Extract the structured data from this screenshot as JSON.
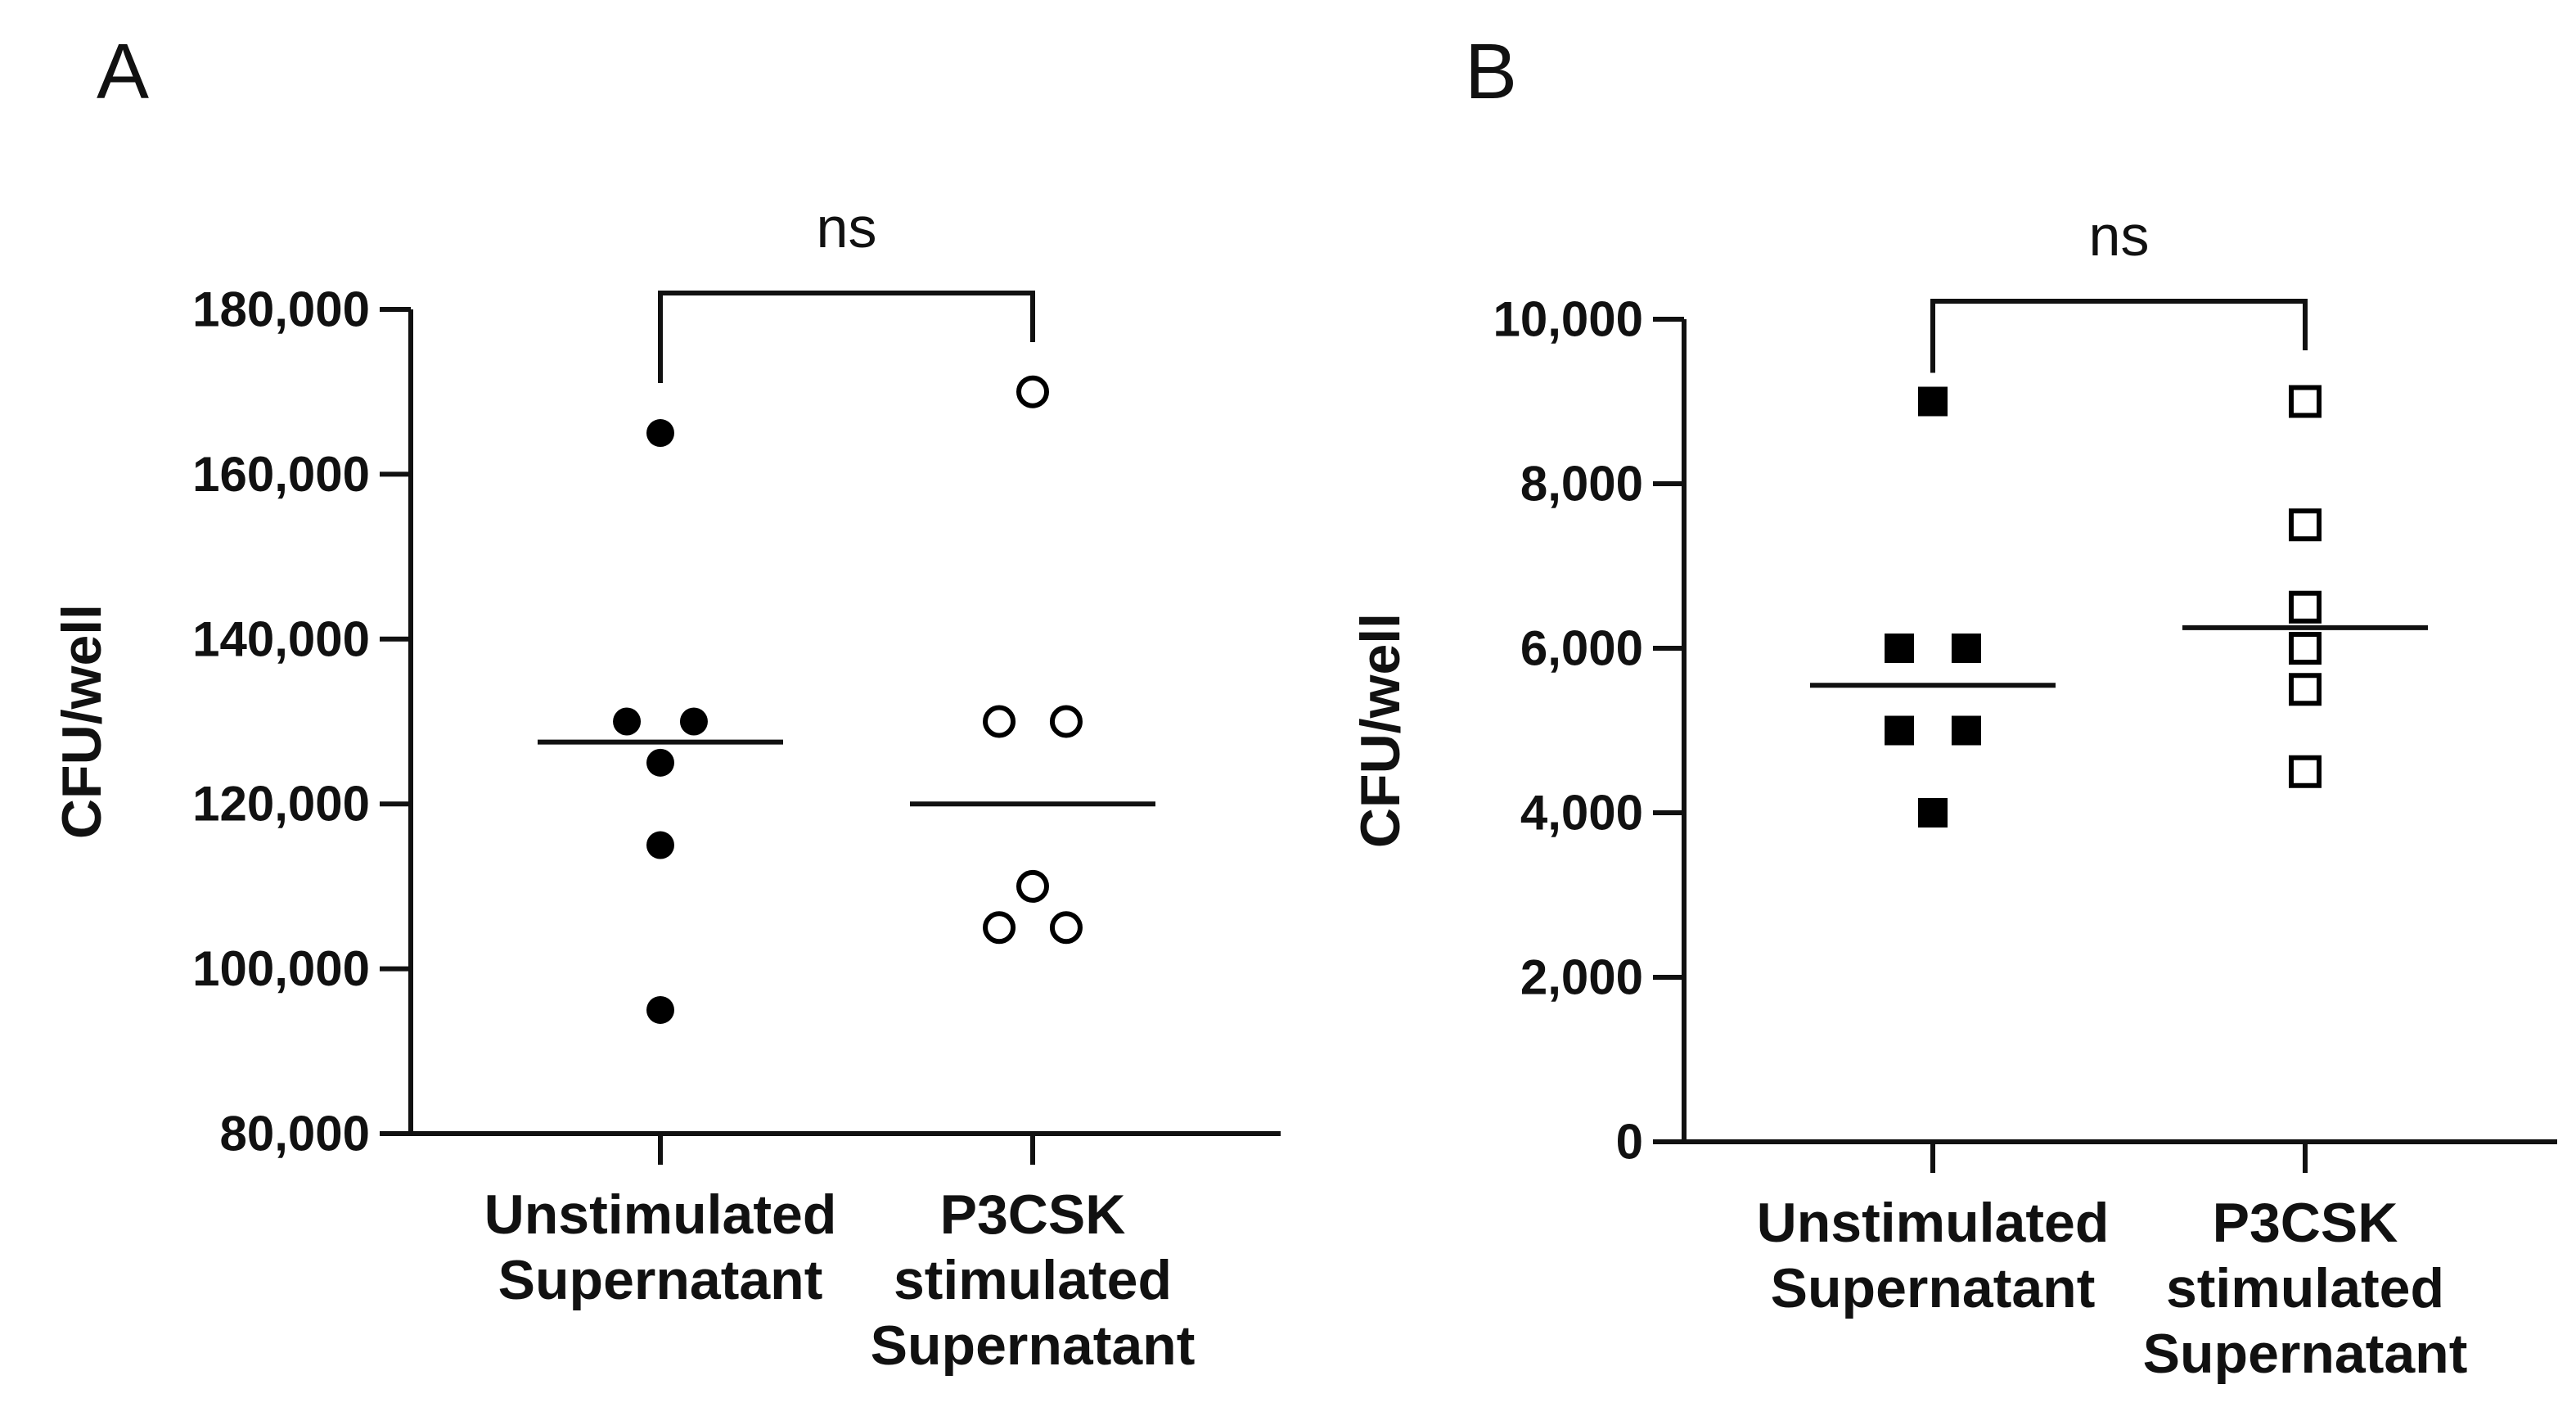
{
  "chart_data": [
    {
      "type": "scatter",
      "panel_label": "A",
      "ylabel": "CFU/well",
      "ylim": [
        80000,
        180000
      ],
      "yticks": [
        80000,
        100000,
        120000,
        140000,
        160000,
        180000
      ],
      "ytick_labels": [
        "80,000",
        "100,000",
        "120,000",
        "140,000",
        "160,000",
        "180,000"
      ],
      "categories": [
        [
          "Unstimulated",
          "Supernatant"
        ],
        [
          "P3CSK",
          "stimulated",
          "Supernatant"
        ]
      ],
      "series": [
        {
          "marker": "filled-circle",
          "color": "#000000",
          "points": [
            {
              "x": 0,
              "y": 165000
            },
            {
              "x": -0.09,
              "y": 130000
            },
            {
              "x": 0.09,
              "y": 130000
            },
            {
              "x": 0,
              "y": 125000
            },
            {
              "x": 0,
              "y": 115000
            },
            {
              "x": 0,
              "y": 95000
            }
          ],
          "mean": 127500
        },
        {
          "marker": "open-circle",
          "color": "#000000",
          "points": [
            {
              "x": 0,
              "y": 170000
            },
            {
              "x": -0.09,
              "y": 130000
            },
            {
              "x": 0.09,
              "y": 130000
            },
            {
              "x": 0,
              "y": 110000
            },
            {
              "x": -0.09,
              "y": 105000
            },
            {
              "x": 0.09,
              "y": 105000
            }
          ],
          "mean": 120000
        }
      ],
      "comparison": {
        "from": 0,
        "to": 1,
        "label": "ns"
      }
    },
    {
      "type": "scatter",
      "panel_label": "B",
      "ylabel": "CFU/well",
      "ylim": [
        0,
        10000
      ],
      "yticks": [
        0,
        2000,
        4000,
        6000,
        8000,
        10000
      ],
      "ytick_labels": [
        "0",
        "2,000",
        "4,000",
        "6,000",
        "8,000",
        "10,000"
      ],
      "categories": [
        [
          "Unstimulated",
          "Supernatant"
        ],
        [
          "P3CSK",
          "stimulated",
          "Supernatant"
        ]
      ],
      "series": [
        {
          "marker": "filled-square",
          "color": "#000000",
          "points": [
            {
              "x": 0,
              "y": 9000
            },
            {
              "x": -0.09,
              "y": 6000
            },
            {
              "x": 0.09,
              "y": 6000
            },
            {
              "x": -0.09,
              "y": 5000
            },
            {
              "x": 0.09,
              "y": 5000
            },
            {
              "x": 0,
              "y": 4000
            }
          ],
          "mean": 5550
        },
        {
          "marker": "open-square",
          "color": "#000000",
          "points": [
            {
              "x": 0,
              "y": 9000
            },
            {
              "x": 0,
              "y": 7500
            },
            {
              "x": 0,
              "y": 6500
            },
            {
              "x": 0,
              "y": 6000
            },
            {
              "x": 0,
              "y": 5500
            },
            {
              "x": 0,
              "y": 4500
            }
          ],
          "mean": 6250
        }
      ],
      "comparison": {
        "from": 0,
        "to": 1,
        "label": "ns"
      }
    }
  ]
}
